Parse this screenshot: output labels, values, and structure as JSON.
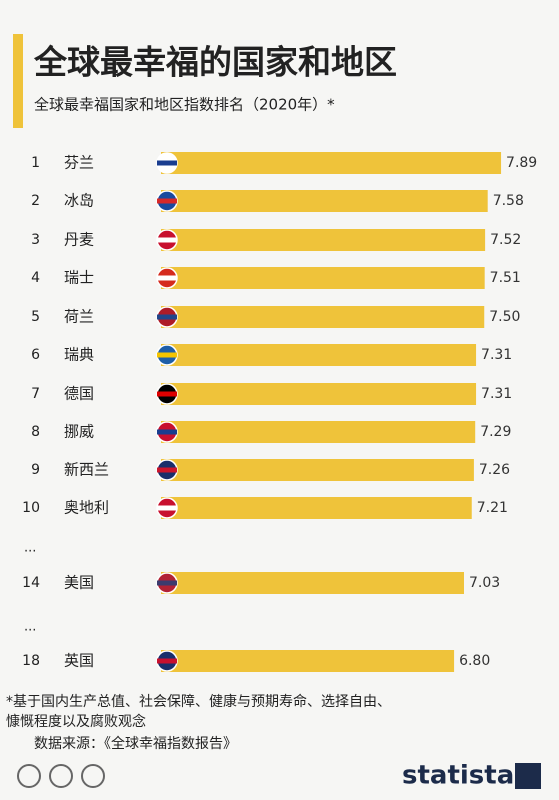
{
  "chart_data": {
    "type": "bar",
    "title": "全球最幸福的国家和地区",
    "subtitle": "全球最幸福国家和地区指数排名（2020年）*",
    "ranks": [
      1,
      2,
      3,
      4,
      5,
      6,
      7,
      8,
      9,
      10,
      14,
      18
    ],
    "categories": [
      "芬兰",
      "冰岛",
      "丹麦",
      "瑞士",
      "荷兰",
      "瑞典",
      "德国",
      "挪威",
      "新西兰",
      "奥地利",
      "美国",
      "英国"
    ],
    "values": [
      7.89,
      7.58,
      7.52,
      7.51,
      7.5,
      7.31,
      7.31,
      7.29,
      7.26,
      7.21,
      7.03,
      6.8
    ],
    "value_labels": [
      "7.89",
      "7.58",
      "7.52",
      "7.51",
      "7.50",
      "7.31",
      "7.31",
      "7.29",
      "7.26",
      "7.21",
      "7.03",
      "6.80"
    ],
    "gap_marks": [
      "...",
      "..."
    ],
    "color": "#efc33a",
    "footnote": [
      "*基于国内生产总值、社会保障、健康与预期寿命、选择自由、",
      "慷慨程度以及腐败观念"
    ],
    "source": "数据来源：《全球幸福指数报告》",
    "logo": "statista"
  }
}
